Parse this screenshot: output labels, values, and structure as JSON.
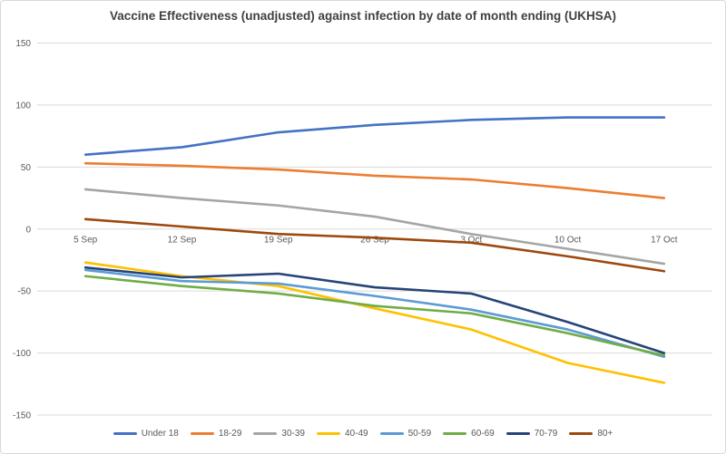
{
  "chart_data": {
    "type": "line",
    "title": "Vaccine Effectiveness (unadjusted) against infection by date of month ending (UKHSA)",
    "categories": [
      "5 Sep",
      "12 Sep",
      "19 Sep",
      "26 Sep",
      "3 Oct",
      "10 Oct",
      "17 Oct"
    ],
    "series": [
      {
        "name": "Under 18",
        "color": "#4472C4",
        "values": [
          60,
          66,
          78,
          84,
          88,
          90,
          90
        ]
      },
      {
        "name": "18-29",
        "color": "#ED7D31",
        "values": [
          53,
          51,
          48,
          43,
          40,
          33,
          25
        ]
      },
      {
        "name": "30-39",
        "color": "#A5A5A5",
        "values": [
          32,
          25,
          19,
          10,
          -4,
          -16,
          -28
        ]
      },
      {
        "name": "40-49",
        "color": "#FFC000",
        "values": [
          -27,
          -38,
          -46,
          -64,
          -81,
          -108,
          -124
        ]
      },
      {
        "name": "50-59",
        "color": "#5B9BD5",
        "values": [
          -33,
          -42,
          -44,
          -54,
          -65,
          -81,
          -103
        ]
      },
      {
        "name": "60-69",
        "color": "#70AD47",
        "values": [
          -38,
          -46,
          -52,
          -62,
          -68,
          -84,
          -102
        ]
      },
      {
        "name": "70-79",
        "color": "#264478",
        "values": [
          -31,
          -39,
          -36,
          -47,
          -52,
          -75,
          -100
        ]
      },
      {
        "name": "80+",
        "color": "#9E480E",
        "values": [
          8,
          2,
          -4,
          -7,
          -11,
          -22,
          -34
        ]
      }
    ],
    "ylim": [
      -150,
      150
    ],
    "yticks": [
      150,
      100,
      50,
      0,
      -50,
      -100,
      -150
    ],
    "grid": true,
    "legend_position": "bottom"
  },
  "styles": {
    "grid_color": "#D9D9D9",
    "axis_text_color": "#595959",
    "title_color": "#404040",
    "border_color": "#D9D9D9",
    "background": "#FFFFFF"
  }
}
